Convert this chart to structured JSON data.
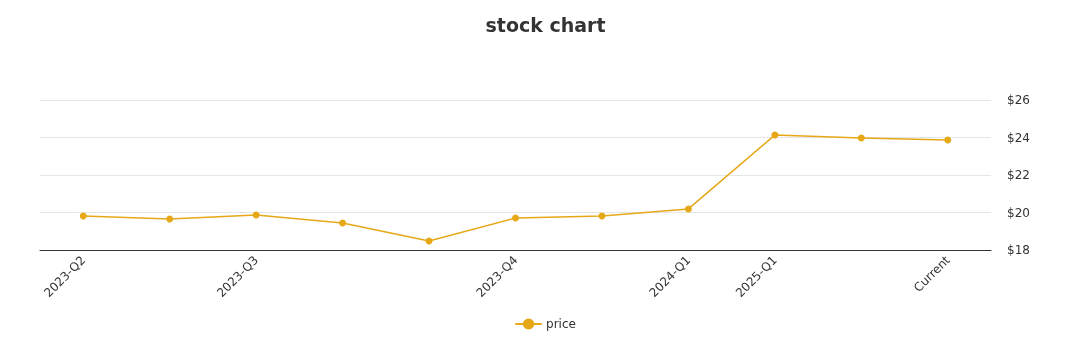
{
  "chart_data": {
    "type": "line",
    "title": "stock chart",
    "categories": [
      "2023-Q2",
      null,
      "2023-Q3",
      null,
      null,
      "2023-Q4",
      null,
      "2024-Q1",
      "2025-Q1",
      null,
      "Current"
    ],
    "series": [
      {
        "name": "price",
        "color": "#e6a817",
        "values": [
          19.81,
          19.65,
          19.87,
          19.44,
          18.48,
          19.71,
          19.81,
          20.19,
          24.13,
          23.97,
          23.87
        ]
      }
    ],
    "ylim": [
      18,
      26
    ],
    "yticks": [
      {
        "value": 18,
        "label": "$18"
      },
      {
        "value": 20,
        "label": "$20"
      },
      {
        "value": 22,
        "label": "$22"
      },
      {
        "value": 24,
        "label": "$24"
      },
      {
        "value": 26,
        "label": "$26"
      }
    ],
    "grid": "y",
    "legend": "bottom",
    "marker": "circle",
    "line_style": "solid"
  }
}
